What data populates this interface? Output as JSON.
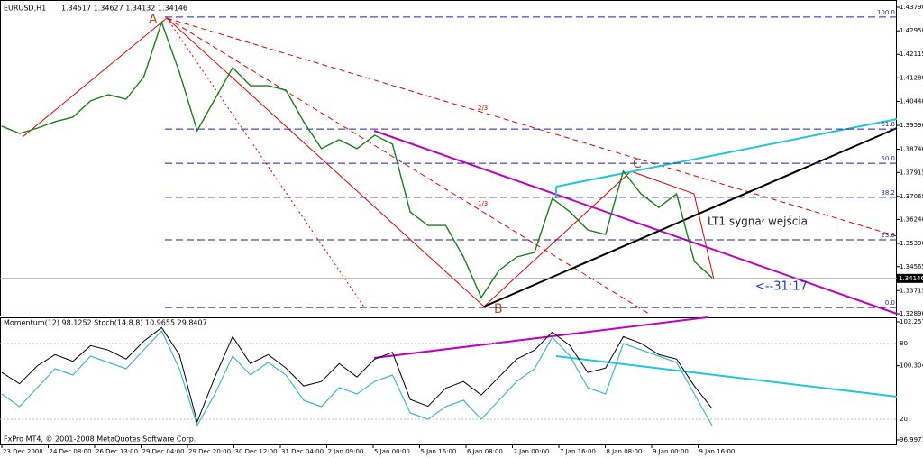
{
  "header": {
    "symbol": "EURUSD,H1",
    "ohlc": "1.34517 1.34627 1.34132 1.34146"
  },
  "price_axis": {
    "ylim": [
      1.3289,
      1.4379
    ],
    "ticks": [
      {
        "value": 1.4379,
        "label": "1.43790"
      },
      {
        "value": 1.4295,
        "label": "1.42950"
      },
      {
        "value": 1.42115,
        "label": "1.42115"
      },
      {
        "value": 1.4128,
        "label": "1.41280"
      },
      {
        "value": 1.4044,
        "label": "1.40440"
      },
      {
        "value": 1.3959,
        "label": "1.39590"
      },
      {
        "value": 1.3874,
        "label": "1.38740"
      },
      {
        "value": 1.37915,
        "label": "1.37915"
      },
      {
        "value": 1.37065,
        "label": "1.37065"
      },
      {
        "value": 1.3624,
        "label": "1.36240"
      },
      {
        "value": 1.3539,
        "label": "1.35390"
      },
      {
        "value": 1.34565,
        "label": "1.34565"
      },
      {
        "value": 1.33715,
        "label": "1.33715"
      },
      {
        "value": 1.3289,
        "label": "1.32890"
      }
    ]
  },
  "current_price": {
    "value": 1.34146,
    "label": "1.34146"
  },
  "closes": [
    1.3956,
    1.393,
    1.3949,
    1.3972,
    1.3988,
    1.4046,
    1.4068,
    1.4052,
    1.4132,
    1.4325,
    1.4148,
    1.394,
    1.4052,
    1.4164,
    1.41,
    1.41,
    1.4084,
    1.3972,
    1.3876,
    1.3908,
    1.3876,
    1.3924,
    1.3892,
    1.3651,
    1.3603,
    1.3603,
    1.3491,
    1.3347,
    1.3443,
    1.3491,
    1.3507,
    1.3699,
    1.3651,
    1.3587,
    1.3571,
    1.3796,
    1.3715,
    1.3667,
    1.3715,
    1.3475,
    1.3417
  ],
  "fib_levels": [
    {
      "value": 1.4344,
      "label": "100.0"
    },
    {
      "value": 1.3946,
      "label": "61.8"
    },
    {
      "value": 1.3824,
      "label": "50.0"
    },
    {
      "value": 1.3703,
      "label": "38.2"
    },
    {
      "value": 1.3552,
      "label": "23.6"
    },
    {
      "value": 1.3311,
      "label": "0.0"
    }
  ],
  "fan_labels": [
    "2/3",
    "1/3"
  ],
  "points": [
    "A",
    "B",
    "C"
  ],
  "annotations": [
    "LT1 sygnał wejścia",
    "<--31:17"
  ],
  "indicator": {
    "title": "Momentum(12) 98.1252  Stoch(14,8,8) 10.9655 29.8407",
    "stoch_ylim": [
      0,
      100
    ],
    "stoch_ticks": [
      80,
      20
    ],
    "momentum_ylim": [
      96.9971,
      102.2571
    ],
    "momentum_ticks": [
      {
        "value": 102.2571,
        "label": "102.2571"
      },
      {
        "value": 100.3046,
        "label": "100.3046"
      },
      {
        "value": 96.9971,
        "label": "96.9971"
      }
    ],
    "stoch": [
      40,
      30,
      45,
      60,
      55,
      70,
      65,
      60,
      75,
      90,
      60,
      15,
      40,
      70,
      55,
      65,
      55,
      35,
      30,
      45,
      40,
      50,
      55,
      25,
      20,
      30,
      35,
      20,
      35,
      50,
      60,
      85,
      70,
      45,
      40,
      80,
      75,
      70,
      65,
      40,
      15
    ],
    "momentum": [
      100.0,
      99.5,
      100.3,
      100.8,
      100.5,
      101.2,
      101.0,
      100.6,
      101.4,
      102.0,
      100.8,
      97.8,
      99.8,
      101.6,
      100.4,
      100.8,
      100.2,
      99.4,
      99.6,
      100.4,
      99.8,
      100.6,
      100.9,
      98.8,
      98.5,
      99.3,
      99.6,
      99.0,
      99.8,
      100.6,
      101.0,
      101.8,
      101.2,
      100.0,
      100.2,
      101.6,
      101.3,
      100.8,
      100.6,
      99.4,
      98.4
    ]
  },
  "time_axis": [
    "23 Dec 2008",
    "24 Dec 08:00",
    "26 Dec 13:00",
    "29 Dec 04:00",
    "29 Dec 20:00",
    "30 Dec 12:00",
    "31 Dec 04:00",
    "2 Jan 09:00",
    "5 Jan 00:00",
    "5 Jan 16:00",
    "6 Jan 08:00",
    "7 Jan 00:00",
    "7 Jan 16:00",
    "8 Jan 08:00",
    "9 Jan 00:00",
    "9 Jan 16:00"
  ],
  "footer": "FxPro MT4, © 2001-2008 MetaQuotes Software Corp."
}
